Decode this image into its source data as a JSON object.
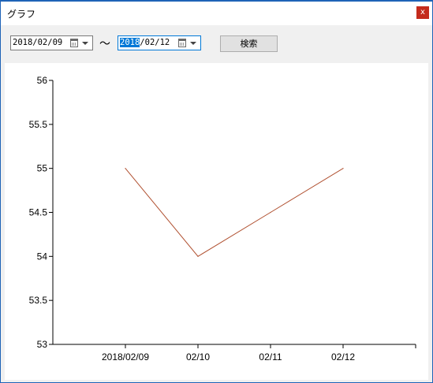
{
  "window": {
    "title": "グラフ",
    "close_label": "x"
  },
  "filter": {
    "from_date": "2018/02/09",
    "separator": "～",
    "to_date_selected": "2018",
    "to_date_rest": "/02/12",
    "search_label": "検索"
  },
  "chart_data": {
    "type": "line",
    "x": [
      "2018/02/09",
      "02/10",
      "02/11",
      "02/12"
    ],
    "series": [
      {
        "values": [
          55,
          54,
          54.5,
          55
        ],
        "color": "#b05030"
      }
    ],
    "title": "",
    "xlabel": "",
    "ylabel": "",
    "ylim": [
      53,
      56
    ],
    "yticks": [
      "53",
      "53.5",
      "54",
      "54.5",
      "55",
      "55.5",
      "56"
    ],
    "grid": false,
    "legend": "none"
  }
}
